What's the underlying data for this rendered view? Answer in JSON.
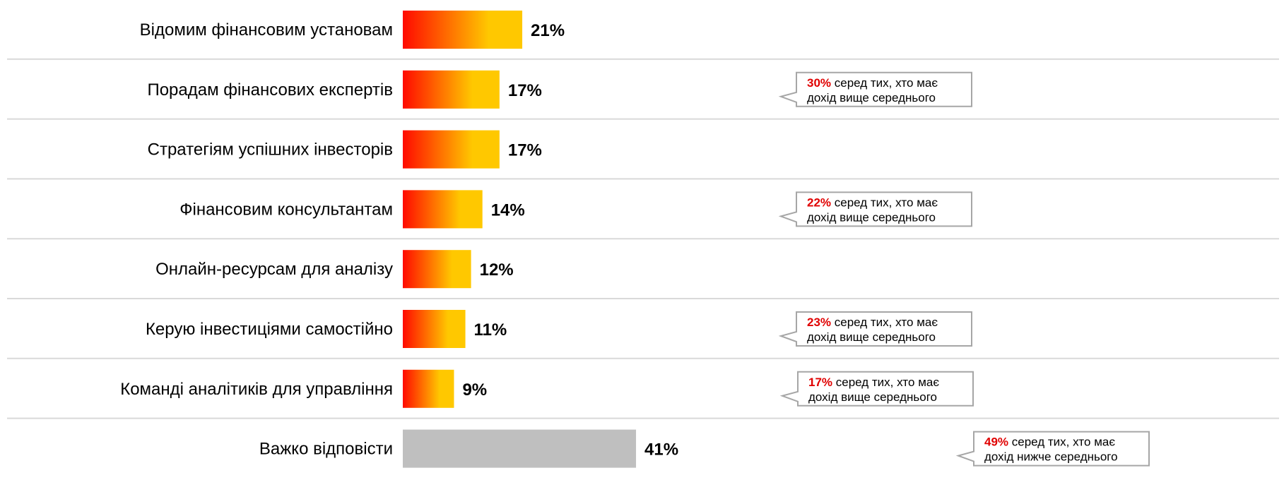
{
  "chart_data": {
    "type": "bar",
    "orientation": "horizontal",
    "categories": [
      "Відомим фінансовим установам",
      "Порадам фінансових експертів",
      "Стратегіям успішних інвесторів",
      "Фінансовим консультантам",
      "Онлайн-ресурсам для аналізу",
      "Керую інвестиціями самостійно",
      "Команді аналітиків для управління",
      "Важко відповісти"
    ],
    "values": [
      21,
      17,
      17,
      14,
      12,
      11,
      9,
      41
    ],
    "value_labels": [
      "21%",
      "17%",
      "17%",
      "14%",
      "12%",
      "11%",
      "9%",
      "41%"
    ],
    "xlim": [
      0,
      41
    ],
    "grid": false,
    "legend": "none",
    "colors": {
      "gradient_start": "#ff0a00",
      "gradient_end": "#ffc800",
      "neutral_bar": "#bfbfbf",
      "separator": "#d9d9d9",
      "callout_border": "#a6a6a6",
      "callout_highlight": "#e00000",
      "text": "#000000"
    },
    "callouts": [
      {
        "row": 1,
        "value": "30%",
        "line1": "серед тих, хто має",
        "line2": "дохід вище середнього"
      },
      {
        "row": 3,
        "value": "22%",
        "line1": "серед тих, хто має",
        "line2": "дохід вище середнього"
      },
      {
        "row": 5,
        "value": "23%",
        "line1": "серед тих, хто має",
        "line2": "дохід вище середнього"
      },
      {
        "row": 6,
        "value": "17%",
        "line1": "серед тих, хто має",
        "line2": "дохід вище середнього"
      },
      {
        "row": 7,
        "value": "49%",
        "line1": "серед тих, хто має",
        "line2": "дохід нижче середнього"
      }
    ]
  }
}
